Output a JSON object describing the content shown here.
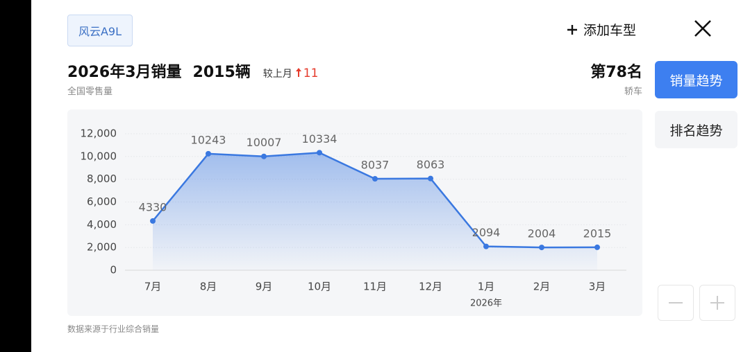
{
  "header": {
    "model_tag": "风云A9L",
    "add_button": "添加车型",
    "title": "2026年3月销量",
    "sales": "2015辆",
    "change_label": "较上月",
    "change_value": "11",
    "subtitle": "全国零售量",
    "rank": "第78名",
    "rank_category": "轿车"
  },
  "tabs": {
    "active": "销量趋势",
    "inactive": "排名趋势"
  },
  "chart_data": {
    "type": "line",
    "categories": [
      "7月",
      "8月",
      "9月",
      "10月",
      "11月",
      "12月",
      "1月",
      "2月",
      "3月"
    ],
    "year_label": "2026年",
    "series": [
      {
        "color": "#3a78e0",
        "values": [
          4330,
          10243,
          10007,
          10334,
          8037,
          8063,
          2094,
          2004,
          2015
        ]
      }
    ],
    "ylim": [
      0,
      12000
    ],
    "yticks": [
      0,
      {
        "value": 2000,
        "label": "2,000"
      },
      {
        "value": 4000,
        "label": "4,000"
      },
      {
        "value": 6000,
        "label": "6,000"
      },
      {
        "value": 8000,
        "label": "8,000"
      },
      {
        "value": 10000,
        "label": "10,000"
      },
      {
        "value": 12000,
        "label": "12,000"
      }
    ],
    "grid": true
  },
  "footer": "数据来源于行业综合销量"
}
